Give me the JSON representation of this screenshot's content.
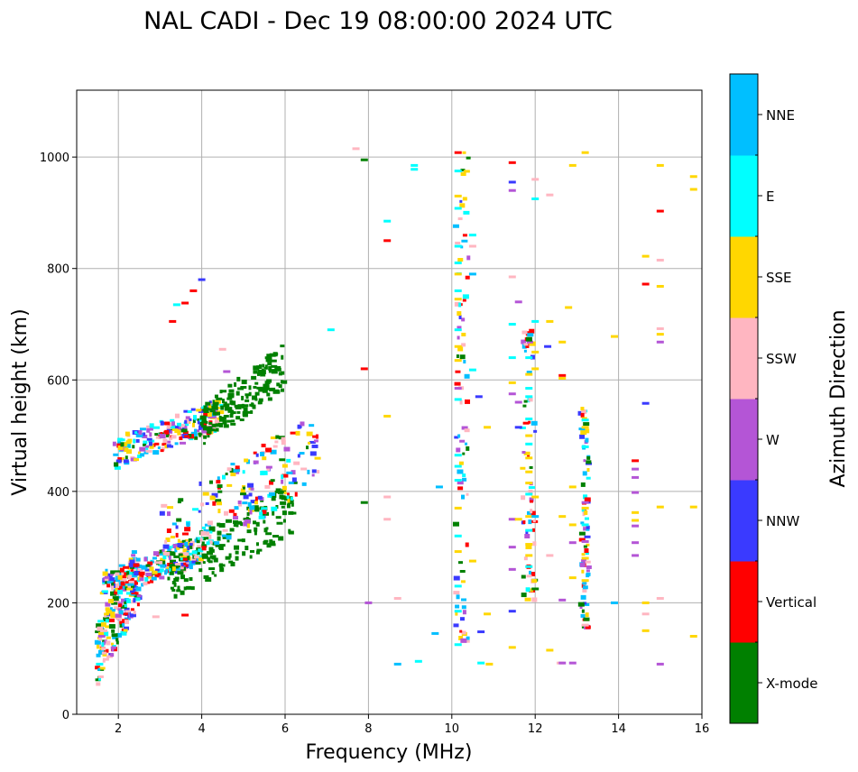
{
  "chart_data": {
    "type": "scatter",
    "title": "NAL CADI - Dec 19 08:00:00 2024 UTC",
    "xlabel": "Frequency (MHz)",
    "ylabel": "Virtual height (km)",
    "xlim": [
      1,
      16
    ],
    "ylim": [
      0,
      1120
    ],
    "xticks": [
      2,
      4,
      6,
      8,
      10,
      12,
      14,
      16
    ],
    "yticks": [
      0,
      200,
      400,
      600,
      800,
      1000
    ],
    "grid": true,
    "colorbar": {
      "title": "Azimuth Direction",
      "categories": [
        {
          "name": "X-mode",
          "color": "#008000"
        },
        {
          "name": "Vertical",
          "color": "#ff0000"
        },
        {
          "name": "NNW",
          "color": "#3a3aff"
        },
        {
          "name": "W",
          "color": "#b455d6"
        },
        {
          "name": "SSW",
          "color": "#ffb6c1"
        },
        {
          "name": "SSE",
          "color": "#ffd700"
        },
        {
          "name": "E",
          "color": "#00ffff"
        },
        {
          "name": "NNE",
          "color": "#00bfff"
        }
      ]
    },
    "clusters": [
      {
        "name": "E-layer trace (scattered)",
        "category": "mixed",
        "x": [
          1.5,
          2.5
        ],
        "y": [
          85,
          330
        ]
      },
      {
        "name": "F1/F2 trace",
        "category": "mixed",
        "x": [
          1.6,
          4.0
        ],
        "y": [
          220,
          330
        ]
      },
      {
        "name": "F trace X-mode",
        "category": "X-mode",
        "x": [
          3.2,
          6.3
        ],
        "y": [
          230,
          440
        ]
      },
      {
        "name": "F trace upper",
        "category": "mixed",
        "x": [
          3.0,
          6.8
        ],
        "y": [
          280,
          570
        ]
      },
      {
        "name": "2nd hop trace",
        "category": "mixed",
        "x": [
          1.9,
          4.5
        ],
        "y": [
          455,
          580
        ]
      },
      {
        "name": "2nd hop X-mode",
        "category": "X-mode",
        "x": [
          4.0,
          6.0
        ],
        "y": [
          500,
          680
        ]
      },
      {
        "name": "Noise column ~10.3 MHz",
        "category": "mixed",
        "x": [
          10.1,
          10.4
        ],
        "y": [
          100,
          1010
        ]
      },
      {
        "name": "Noise column ~11.8 MHz",
        "category": "mixed",
        "x": [
          11.7,
          12.0
        ],
        "y": [
          200,
          700
        ]
      },
      {
        "name": "Noise column ~13.2 MHz",
        "category": "mixed",
        "x": [
          13.1,
          13.3
        ],
        "y": [
          150,
          550
        ]
      }
    ],
    "points": [
      {
        "x": 1.55,
        "y": 90,
        "c": "E"
      },
      {
        "x": 1.6,
        "y": 140,
        "c": "W"
      },
      {
        "x": 1.65,
        "y": 150,
        "c": "SSW"
      },
      {
        "x": 2.9,
        "y": 175,
        "c": "SSW"
      },
      {
        "x": 3.6,
        "y": 178,
        "c": "Vertical"
      },
      {
        "x": 3.3,
        "y": 705,
        "c": "Vertical"
      },
      {
        "x": 3.4,
        "y": 735,
        "c": "E"
      },
      {
        "x": 3.6,
        "y": 738,
        "c": "Vertical"
      },
      {
        "x": 3.8,
        "y": 760,
        "c": "Vertical"
      },
      {
        "x": 4.0,
        "y": 780,
        "c": "NNW"
      },
      {
        "x": 4.5,
        "y": 655,
        "c": "SSW"
      },
      {
        "x": 4.6,
        "y": 615,
        "c": "W"
      },
      {
        "x": 7.1,
        "y": 690,
        "c": "E"
      },
      {
        "x": 7.7,
        "y": 1015,
        "c": "SSW"
      },
      {
        "x": 7.9,
        "y": 995,
        "c": "X-mode"
      },
      {
        "x": 7.9,
        "y": 620,
        "c": "Vertical"
      },
      {
        "x": 7.9,
        "y": 380,
        "c": "X-mode"
      },
      {
        "x": 8.0,
        "y": 200,
        "c": "W"
      },
      {
        "x": 8.45,
        "y": 885,
        "c": "E"
      },
      {
        "x": 8.45,
        "y": 850,
        "c": "Vertical"
      },
      {
        "x": 8.45,
        "y": 535,
        "c": "SSE"
      },
      {
        "x": 8.45,
        "y": 390,
        "c": "SSW"
      },
      {
        "x": 8.45,
        "y": 350,
        "c": "SSW"
      },
      {
        "x": 8.7,
        "y": 208,
        "c": "SSW"
      },
      {
        "x": 8.7,
        "y": 90,
        "c": "NNE"
      },
      {
        "x": 9.1,
        "y": 985,
        "c": "E"
      },
      {
        "x": 9.1,
        "y": 978,
        "c": "E"
      },
      {
        "x": 9.2,
        "y": 95,
        "c": "E"
      },
      {
        "x": 9.6,
        "y": 145,
        "c": "NNE"
      },
      {
        "x": 9.7,
        "y": 408,
        "c": "NNE"
      },
      {
        "x": 10.15,
        "y": 1008,
        "c": "Vertical"
      },
      {
        "x": 10.15,
        "y": 975,
        "c": "E"
      },
      {
        "x": 10.15,
        "y": 930,
        "c": "SSE"
      },
      {
        "x": 10.15,
        "y": 908,
        "c": "E"
      },
      {
        "x": 10.15,
        "y": 840,
        "c": "E"
      },
      {
        "x": 10.15,
        "y": 810,
        "c": "E"
      },
      {
        "x": 10.15,
        "y": 790,
        "c": "SSE"
      },
      {
        "x": 10.15,
        "y": 760,
        "c": "E"
      },
      {
        "x": 10.15,
        "y": 745,
        "c": "SSE"
      },
      {
        "x": 10.15,
        "y": 690,
        "c": "E"
      },
      {
        "x": 10.15,
        "y": 660,
        "c": "SSE"
      },
      {
        "x": 10.15,
        "y": 635,
        "c": "SSE"
      },
      {
        "x": 10.15,
        "y": 585,
        "c": "W"
      },
      {
        "x": 10.15,
        "y": 565,
        "c": "E"
      },
      {
        "x": 10.15,
        "y": 465,
        "c": "E"
      },
      {
        "x": 10.15,
        "y": 445,
        "c": "E"
      },
      {
        "x": 10.15,
        "y": 420,
        "c": "E"
      },
      {
        "x": 10.15,
        "y": 370,
        "c": "SSE"
      },
      {
        "x": 10.15,
        "y": 320,
        "c": "E"
      },
      {
        "x": 10.15,
        "y": 292,
        "c": "SSE"
      },
      {
        "x": 10.15,
        "y": 230,
        "c": "E"
      },
      {
        "x": 10.15,
        "y": 185,
        "c": "E"
      },
      {
        "x": 10.15,
        "y": 125,
        "c": "E"
      },
      {
        "x": 10.5,
        "y": 860,
        "c": "E"
      },
      {
        "x": 10.5,
        "y": 840,
        "c": "SSW"
      },
      {
        "x": 10.5,
        "y": 790,
        "c": "NNE"
      },
      {
        "x": 10.5,
        "y": 618,
        "c": "E"
      },
      {
        "x": 10.5,
        "y": 275,
        "c": "SSE"
      },
      {
        "x": 10.65,
        "y": 570,
        "c": "NNW"
      },
      {
        "x": 10.7,
        "y": 148,
        "c": "NNW"
      },
      {
        "x": 10.7,
        "y": 92,
        "c": "E"
      },
      {
        "x": 10.9,
        "y": 90,
        "c": "SSE"
      },
      {
        "x": 10.85,
        "y": 515,
        "c": "SSE"
      },
      {
        "x": 10.85,
        "y": 180,
        "c": "SSE"
      },
      {
        "x": 11.45,
        "y": 990,
        "c": "Vertical"
      },
      {
        "x": 11.45,
        "y": 955,
        "c": "NNW"
      },
      {
        "x": 11.45,
        "y": 940,
        "c": "W"
      },
      {
        "x": 11.45,
        "y": 785,
        "c": "SSW"
      },
      {
        "x": 11.45,
        "y": 700,
        "c": "E"
      },
      {
        "x": 11.45,
        "y": 640,
        "c": "E"
      },
      {
        "x": 11.45,
        "y": 595,
        "c": "SSE"
      },
      {
        "x": 11.45,
        "y": 575,
        "c": "W"
      },
      {
        "x": 11.45,
        "y": 350,
        "c": "W"
      },
      {
        "x": 11.45,
        "y": 300,
        "c": "W"
      },
      {
        "x": 11.45,
        "y": 260,
        "c": "W"
      },
      {
        "x": 11.45,
        "y": 185,
        "c": "NNW"
      },
      {
        "x": 11.45,
        "y": 120,
        "c": "SSE"
      },
      {
        "x": 11.6,
        "y": 740,
        "c": "W"
      },
      {
        "x": 11.6,
        "y": 560,
        "c": "W"
      },
      {
        "x": 11.6,
        "y": 515,
        "c": "NNW"
      },
      {
        "x": 11.6,
        "y": 350,
        "c": "SSE"
      },
      {
        "x": 11.85,
        "y": 640,
        "c": "E"
      },
      {
        "x": 11.85,
        "y": 610,
        "c": "SSE"
      },
      {
        "x": 11.85,
        "y": 585,
        "c": "E"
      },
      {
        "x": 11.85,
        "y": 570,
        "c": "E"
      },
      {
        "x": 11.85,
        "y": 530,
        "c": "E"
      },
      {
        "x": 11.85,
        "y": 500,
        "c": "SSE"
      },
      {
        "x": 11.85,
        "y": 485,
        "c": "E"
      },
      {
        "x": 11.85,
        "y": 460,
        "c": "SSE"
      },
      {
        "x": 11.85,
        "y": 435,
        "c": "SSE"
      },
      {
        "x": 11.85,
        "y": 415,
        "c": "SSE"
      },
      {
        "x": 11.85,
        "y": 395,
        "c": "E"
      },
      {
        "x": 11.85,
        "y": 355,
        "c": "SSE"
      },
      {
        "x": 11.85,
        "y": 330,
        "c": "E"
      },
      {
        "x": 11.85,
        "y": 305,
        "c": "SSE"
      },
      {
        "x": 11.85,
        "y": 285,
        "c": "SSE"
      },
      {
        "x": 11.85,
        "y": 265,
        "c": "E"
      },
      {
        "x": 12.0,
        "y": 960,
        "c": "SSW"
      },
      {
        "x": 12.0,
        "y": 925,
        "c": "E"
      },
      {
        "x": 12.0,
        "y": 705,
        "c": "E"
      },
      {
        "x": 12.0,
        "y": 650,
        "c": "SSE"
      },
      {
        "x": 12.0,
        "y": 620,
        "c": "SSE"
      },
      {
        "x": 12.0,
        "y": 390,
        "c": "SSE"
      },
      {
        "x": 12.0,
        "y": 355,
        "c": "NNE"
      },
      {
        "x": 12.0,
        "y": 225,
        "c": "X-mode"
      },
      {
        "x": 12.3,
        "y": 660,
        "c": "NNW"
      },
      {
        "x": 12.35,
        "y": 932,
        "c": "SSW"
      },
      {
        "x": 12.35,
        "y": 705,
        "c": "SSE"
      },
      {
        "x": 12.35,
        "y": 285,
        "c": "SSW"
      },
      {
        "x": 12.35,
        "y": 115,
        "c": "SSE"
      },
      {
        "x": 12.6,
        "y": 92,
        "c": "SSW"
      },
      {
        "x": 12.65,
        "y": 608,
        "c": "Vertical"
      },
      {
        "x": 12.65,
        "y": 603,
        "c": "SSE"
      },
      {
        "x": 12.65,
        "y": 668,
        "c": "SSE"
      },
      {
        "x": 12.65,
        "y": 355,
        "c": "SSE"
      },
      {
        "x": 12.65,
        "y": 205,
        "c": "W"
      },
      {
        "x": 12.65,
        "y": 92,
        "c": "W"
      },
      {
        "x": 12.8,
        "y": 730,
        "c": "SSE"
      },
      {
        "x": 12.9,
        "y": 985,
        "c": "SSE"
      },
      {
        "x": 12.9,
        "y": 408,
        "c": "SSE"
      },
      {
        "x": 12.9,
        "y": 340,
        "c": "SSE"
      },
      {
        "x": 12.9,
        "y": 308,
        "c": "W"
      },
      {
        "x": 12.9,
        "y": 245,
        "c": "SSE"
      },
      {
        "x": 12.9,
        "y": 92,
        "c": "W"
      },
      {
        "x": 13.2,
        "y": 1008,
        "c": "SSE"
      },
      {
        "x": 13.2,
        "y": 528,
        "c": "E"
      },
      {
        "x": 13.2,
        "y": 515,
        "c": "SSE"
      },
      {
        "x": 13.2,
        "y": 480,
        "c": "E"
      },
      {
        "x": 13.2,
        "y": 380,
        "c": "W"
      },
      {
        "x": 13.2,
        "y": 370,
        "c": "SSE"
      },
      {
        "x": 13.2,
        "y": 340,
        "c": "E"
      },
      {
        "x": 13.2,
        "y": 310,
        "c": "W"
      },
      {
        "x": 13.2,
        "y": 280,
        "c": "SSE"
      },
      {
        "x": 13.2,
        "y": 240,
        "c": "SSE"
      },
      {
        "x": 13.2,
        "y": 160,
        "c": "SSW"
      },
      {
        "x": 13.9,
        "y": 678,
        "c": "SSE"
      },
      {
        "x": 13.9,
        "y": 200,
        "c": "NNE"
      },
      {
        "x": 14.4,
        "y": 455,
        "c": "Vertical"
      },
      {
        "x": 14.4,
        "y": 440,
        "c": "W"
      },
      {
        "x": 14.4,
        "y": 425,
        "c": "W"
      },
      {
        "x": 14.4,
        "y": 398,
        "c": "W"
      },
      {
        "x": 14.4,
        "y": 362,
        "c": "SSE"
      },
      {
        "x": 14.4,
        "y": 348,
        "c": "SSE"
      },
      {
        "x": 14.4,
        "y": 338,
        "c": "W"
      },
      {
        "x": 14.4,
        "y": 308,
        "c": "W"
      },
      {
        "x": 14.4,
        "y": 285,
        "c": "W"
      },
      {
        "x": 14.65,
        "y": 822,
        "c": "SSE"
      },
      {
        "x": 14.65,
        "y": 772,
        "c": "Vertical"
      },
      {
        "x": 14.65,
        "y": 558,
        "c": "NNW"
      },
      {
        "x": 14.65,
        "y": 200,
        "c": "SSE"
      },
      {
        "x": 14.65,
        "y": 180,
        "c": "SSW"
      },
      {
        "x": 14.65,
        "y": 150,
        "c": "SSE"
      },
      {
        "x": 15.0,
        "y": 985,
        "c": "SSE"
      },
      {
        "x": 15.0,
        "y": 903,
        "c": "Vertical"
      },
      {
        "x": 15.0,
        "y": 815,
        "c": "SSW"
      },
      {
        "x": 15.0,
        "y": 768,
        "c": "SSE"
      },
      {
        "x": 15.0,
        "y": 692,
        "c": "SSW"
      },
      {
        "x": 15.0,
        "y": 682,
        "c": "SSE"
      },
      {
        "x": 15.0,
        "y": 668,
        "c": "W"
      },
      {
        "x": 15.0,
        "y": 372,
        "c": "SSE"
      },
      {
        "x": 15.0,
        "y": 208,
        "c": "SSW"
      },
      {
        "x": 15.0,
        "y": 90,
        "c": "W"
      },
      {
        "x": 15.8,
        "y": 965,
        "c": "SSE"
      },
      {
        "x": 15.8,
        "y": 942,
        "c": "SSE"
      },
      {
        "x": 15.8,
        "y": 372,
        "c": "SSE"
      },
      {
        "x": 15.8,
        "y": 140,
        "c": "SSE"
      }
    ]
  }
}
